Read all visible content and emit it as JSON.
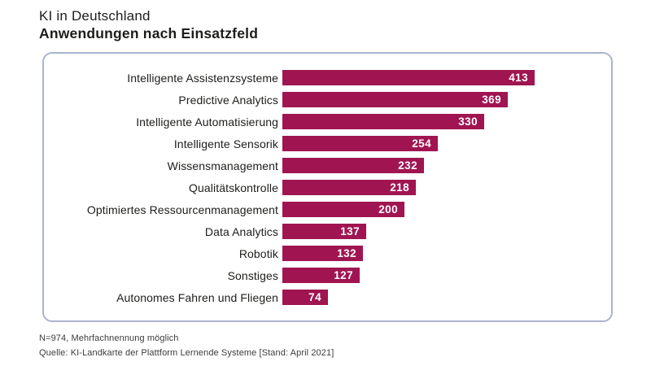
{
  "header": {
    "kicker": "KI in Deutschland",
    "title": "Anwendungen nach Einsatzfeld"
  },
  "footer": {
    "note": "N=974, Mehrfachnennung möglich",
    "source": "Quelle: KI-Landkarte der Plattform Lernende Systeme [Stand: April 2021]"
  },
  "colors": {
    "bar": "#a01551",
    "panel_border": "#a9b4cf",
    "title": "#1d1d1b",
    "text": "#1d1d1b",
    "value_text": "#ffffff",
    "footer_text": "#3c3c3b"
  },
  "chart_data": {
    "type": "bar",
    "orientation": "horizontal",
    "title": "KI in Deutschland",
    "subtitle": "Anwendungen nach Einsatzfeld",
    "categories": [
      "Intelligente Assistenzsysteme",
      "Predictive Analytics",
      "Intelligente Automatisierung",
      "Intelligente Sensorik",
      "Wissensmanagement",
      "Qualitätskontrolle",
      "Optimiertes Ressourcenmanagement",
      "Data Analytics",
      "Robotik",
      "Sonstiges",
      "Autonomes Fahren und Fliegen"
    ],
    "values": [
      413,
      369,
      330,
      254,
      232,
      218,
      200,
      137,
      132,
      127,
      74
    ],
    "value_labels_visible": true,
    "axis_visible": false,
    "grid": false,
    "legend": "none",
    "xlim": [
      0,
      413
    ]
  }
}
